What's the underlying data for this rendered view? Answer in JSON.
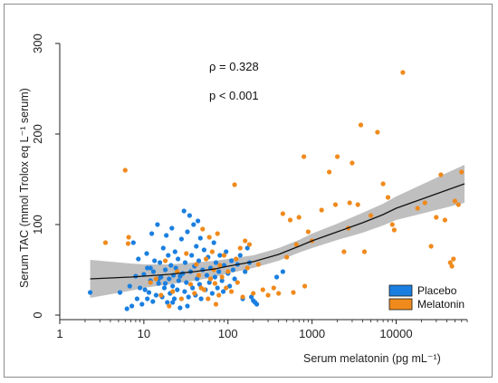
{
  "chart_data": {
    "type": "scatter",
    "title": "",
    "xlabel": "Serum melatonin (pg mL⁻¹)",
    "ylabel": "Serum TAC (mmol Trolox eq L⁻¹ serum)",
    "xscale": "log10",
    "xlim": [
      1,
      70000
    ],
    "ylim": [
      -5,
      300
    ],
    "xticks": [
      1,
      10,
      100,
      1000,
      10000
    ],
    "xtick_labels": [
      "1",
      "10",
      "100",
      "1000",
      "10000"
    ],
    "yticks": [
      0,
      100,
      200,
      300
    ],
    "ytick_labels": [
      "0",
      "100",
      "200",
      "300"
    ],
    "grid": false,
    "legend_position": "bottom-right",
    "annotations": [
      "ρ = 0.328",
      "p < 0.001"
    ],
    "colors": {
      "placebo": "#1a7fe0",
      "melatonin": "#f08a1c",
      "fit": "#111111",
      "band": "#b4b4b4"
    },
    "series": [
      {
        "name": "Placebo",
        "points": [
          [
            2.3,
            25
          ],
          [
            5.2,
            25
          ],
          [
            6.3,
            7
          ],
          [
            6.8,
            32
          ],
          [
            7.2,
            10
          ],
          [
            7.5,
            80
          ],
          [
            8,
            43
          ],
          [
            8.3,
            18
          ],
          [
            8.6,
            62
          ],
          [
            9,
            30
          ],
          [
            9.5,
            12
          ],
          [
            10,
            45
          ],
          [
            10.3,
            28
          ],
          [
            10.8,
            68
          ],
          [
            11,
            52
          ],
          [
            11.5,
            25
          ],
          [
            12,
            38
          ],
          [
            12.4,
            90
          ],
          [
            12.8,
            15
          ],
          [
            13,
            48
          ],
          [
            13.4,
            60
          ],
          [
            14,
            22
          ],
          [
            14.5,
            100
          ],
          [
            15,
            35
          ],
          [
            15.5,
            58
          ],
          [
            16,
            42
          ],
          [
            16.5,
            20
          ],
          [
            17,
            74
          ],
          [
            17.5,
            30
          ],
          [
            18,
            50
          ],
          [
            18.5,
            88
          ],
          [
            19,
            14
          ],
          [
            19.5,
            66
          ],
          [
            20,
            40
          ],
          [
            20.5,
            24
          ],
          [
            21,
            55
          ],
          [
            21.5,
            96
          ],
          [
            22,
            32
          ],
          [
            22.5,
            44
          ],
          [
            23,
            18
          ],
          [
            23.5,
            70
          ],
          [
            24,
            52
          ],
          [
            25,
            28
          ],
          [
            25.5,
            62
          ],
          [
            26,
            38
          ],
          [
            27,
            8
          ],
          [
            28,
            84
          ],
          [
            29,
            46
          ],
          [
            30,
            115
          ],
          [
            30.5,
            26
          ],
          [
            31,
            58
          ],
          [
            32,
            36
          ],
          [
            33,
            92
          ],
          [
            34,
            20
          ],
          [
            35,
            110
          ],
          [
            36,
            48
          ],
          [
            37,
            66
          ],
          [
            38,
            30
          ],
          [
            39,
            100
          ],
          [
            40,
            54
          ],
          [
            41,
            22
          ],
          [
            42,
            76
          ],
          [
            43,
            40
          ],
          [
            44,
            104
          ],
          [
            45,
            60
          ],
          [
            46,
            34
          ],
          [
            47,
            85
          ],
          [
            48,
            18
          ],
          [
            50,
            50
          ],
          [
            52,
            72
          ],
          [
            54,
            28
          ],
          [
            56,
            44
          ],
          [
            58,
            64
          ],
          [
            60,
            36
          ],
          [
            62,
            52
          ],
          [
            65,
            24
          ],
          [
            68,
            80
          ],
          [
            70,
            42
          ],
          [
            72,
            58
          ],
          [
            75,
            30
          ],
          [
            78,
            48
          ],
          [
            80,
            66
          ],
          [
            85,
            38
          ],
          [
            88,
            26
          ],
          [
            90,
            55
          ],
          [
            95,
            70
          ],
          [
            100,
            46
          ],
          [
            105,
            32
          ],
          [
            110,
            60
          ],
          [
            115,
            50
          ],
          [
            120,
            40
          ],
          [
            130,
            56
          ],
          [
            140,
            66
          ],
          [
            150,
            18
          ],
          [
            160,
            48
          ],
          [
            170,
            74
          ],
          [
            180,
            58
          ],
          [
            190,
            20
          ],
          [
            200,
            16
          ],
          [
            210,
            14
          ],
          [
            220,
            12
          ],
          [
            380,
            42
          ],
          [
            450,
            48
          ],
          [
            11,
            18
          ],
          [
            15,
            40
          ],
          [
            12,
            52
          ],
          [
            18,
            35
          ],
          [
            22,
            14
          ],
          [
            27,
            43
          ],
          [
            33,
            10
          ]
        ]
      },
      {
        "name": "Melatonin",
        "points": [
          [
            3.5,
            80
          ],
          [
            6,
            160
          ],
          [
            6.5,
            79
          ],
          [
            6.6,
            86
          ],
          [
            12,
            36
          ],
          [
            14,
            40
          ],
          [
            16,
            22
          ],
          [
            18,
            60
          ],
          [
            20,
            10
          ],
          [
            22,
            26
          ],
          [
            25,
            48
          ],
          [
            28,
            18
          ],
          [
            32,
            68
          ],
          [
            36,
            34
          ],
          [
            40,
            24
          ],
          [
            42,
            56
          ],
          [
            45,
            44
          ],
          [
            48,
            30
          ],
          [
            50,
            95
          ],
          [
            52,
            28
          ],
          [
            55,
            62
          ],
          [
            58,
            18
          ],
          [
            60,
            86
          ],
          [
            62,
            40
          ],
          [
            65,
            70
          ],
          [
            68,
            50
          ],
          [
            70,
            35
          ],
          [
            72,
            12
          ],
          [
            75,
            90
          ],
          [
            78,
            22
          ],
          [
            80,
            55
          ],
          [
            85,
            42
          ],
          [
            90,
            66
          ],
          [
            95,
            30
          ],
          [
            100,
            48
          ],
          [
            110,
            26
          ],
          [
            120,
            144
          ],
          [
            125,
            62
          ],
          [
            130,
            36
          ],
          [
            140,
            74
          ],
          [
            150,
            20
          ],
          [
            160,
            82
          ],
          [
            170,
            52
          ],
          [
            180,
            78
          ],
          [
            200,
            24
          ],
          [
            230,
            56
          ],
          [
            260,
            28
          ],
          [
            300,
            22
          ],
          [
            350,
            30
          ],
          [
            400,
            24
          ],
          [
            450,
            112
          ],
          [
            500,
            64
          ],
          [
            550,
            105
          ],
          [
            600,
            25
          ],
          [
            650,
            78
          ],
          [
            700,
            108
          ],
          [
            800,
            175
          ],
          [
            820,
            32
          ],
          [
            900,
            92
          ],
          [
            1000,
            82
          ],
          [
            1300,
            116
          ],
          [
            1600,
            158
          ],
          [
            1900,
            122
          ],
          [
            2000,
            175
          ],
          [
            2400,
            70
          ],
          [
            2800,
            124
          ],
          [
            3000,
            168
          ],
          [
            3500,
            122
          ],
          [
            3800,
            210
          ],
          [
            4200,
            70
          ],
          [
            5000,
            110
          ],
          [
            6000,
            202
          ],
          [
            7000,
            145
          ],
          [
            8000,
            130
          ],
          [
            9000,
            100
          ],
          [
            9500,
            94
          ],
          [
            12000,
            268
          ],
          [
            18000,
            118
          ],
          [
            22000,
            124
          ],
          [
            26000,
            76
          ],
          [
            30000,
            108
          ],
          [
            34000,
            155
          ],
          [
            38000,
            105
          ],
          [
            44000,
            58
          ],
          [
            46000,
            54
          ],
          [
            48000,
            62
          ],
          [
            55000,
            122
          ],
          [
            60000,
            158
          ],
          [
            50000,
            126
          ],
          [
            2700,
            96
          ]
        ]
      }
    ],
    "fit_line": {
      "x": [
        2.3,
        4,
        7,
        10,
        20,
        40,
        70,
        100,
        200,
        400,
        700,
        1000,
        2000,
        4000,
        7000,
        10000,
        20000,
        40000,
        65000
      ],
      "y": [
        40,
        41,
        42,
        43,
        45,
        48,
        51,
        54,
        59,
        67,
        76,
        82,
        92,
        102,
        111,
        118,
        128,
        138,
        145
      ],
      "ci_half_width": [
        21,
        18,
        15,
        13,
        11,
        10,
        9,
        8,
        7,
        7,
        7,
        8,
        9,
        11,
        12,
        13,
        16,
        19,
        21
      ]
    }
  }
}
